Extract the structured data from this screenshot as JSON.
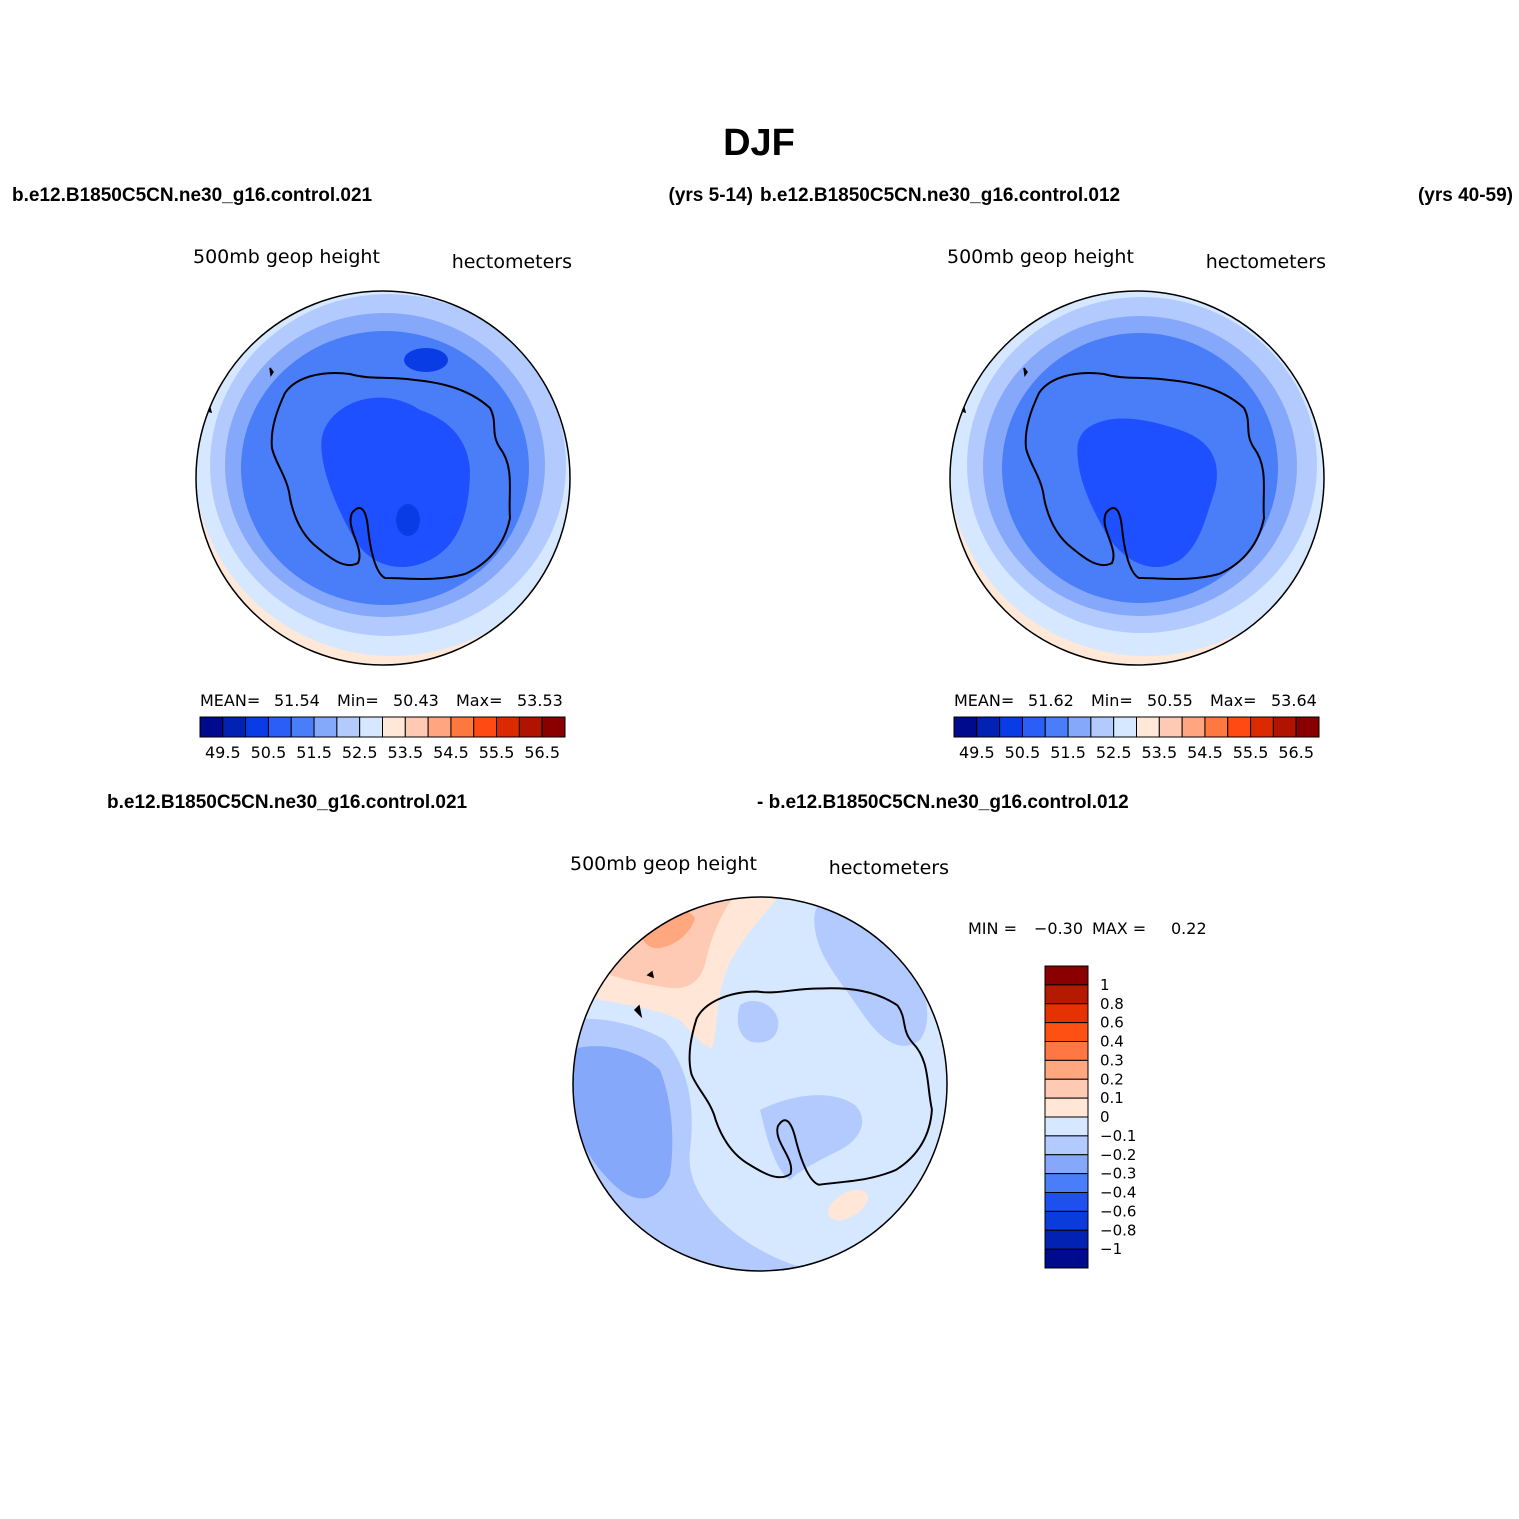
{
  "figure": {
    "title": "DJF"
  },
  "panels": [
    {
      "case_left": "b.e12.B1850C5CN.ne30_g16.control.021",
      "case_right": "(yrs 5-14)",
      "field": "500mb geop height",
      "units": "hectometers",
      "stats": {
        "mean_label": "MEAN=",
        "mean": "51.54",
        "min_label": "Min=",
        "min": "50.43",
        "max_label": "Max=",
        "max": "53.53"
      },
      "colorbar_labels": [
        "49.5",
        "50.5",
        "51.5",
        "52.5",
        "53.5",
        "54.5",
        "55.5",
        "56.5"
      ]
    },
    {
      "case_left": "b.e12.B1850C5CN.ne30_g16.control.012",
      "case_right": "(yrs 40-59)",
      "field": "500mb geop height",
      "units": "hectometers",
      "stats": {
        "mean_label": "MEAN=",
        "mean": "51.62",
        "min_label": "Min=",
        "min": "50.55",
        "max_label": "Max=",
        "max": "53.64"
      },
      "colorbar_labels": [
        "49.5",
        "50.5",
        "51.5",
        "52.5",
        "53.5",
        "54.5",
        "55.5",
        "56.5"
      ]
    }
  ],
  "diff_panel": {
    "case_left": "b.e12.B1850C5CN.ne30_g16.control.021",
    "case_right": "- b.e12.B1850C5CN.ne30_g16.control.012",
    "field": "500mb geop height",
    "units": "hectometers",
    "min_label": "MIN =",
    "min": "−0.30",
    "max_label": "MAX =",
    "max": "0.22",
    "colorbar_labels": [
      "1",
      "0.8",
      "0.6",
      "0.4",
      "0.3",
      "0.2",
      "0.1",
      "0",
      "−0.1",
      "−0.2",
      "−0.3",
      "−0.4",
      "−0.6",
      "−0.8",
      "−1"
    ]
  },
  "palettes": {
    "abs": [
      "#000a8c",
      "#0222b4",
      "#0a3ce6",
      "#2a5ef6",
      "#4a7ef8",
      "#84a8fa",
      "#b3caff",
      "#d6e8ff",
      "#ffe8d8",
      "#ffcab4",
      "#ffa680",
      "#ff7840",
      "#ff4a14",
      "#dc2a00",
      "#b01400",
      "#8a0000"
    ],
    "diff": [
      "#8a0000",
      "#b41a00",
      "#e63200",
      "#ff5014",
      "#ff7844",
      "#ffa880",
      "#ffcab4",
      "#ffe6d6",
      "#d6e8ff",
      "#b3caff",
      "#86a8fa",
      "#4a7ef8",
      "#1e50f0",
      "#0a3cdc",
      "#0222b4",
      "#000a8c"
    ],
    "map_abs_1": {
      "outer_warm": "#ffe8d8",
      "ring1": "#d6e8ff",
      "ring2": "#b3caff",
      "ring3": "#86a8fa",
      "ring4": "#4a7ef8",
      "core": "#1e50ff",
      "deep": "#0a3ce6"
    },
    "map_abs_2": {
      "outer_warm": "#ffe8d8",
      "ring1": "#d6e8ff",
      "ring2": "#b3caff",
      "ring3": "#86a8fa",
      "ring4": "#4a7ef8",
      "core": "#1e50ff"
    },
    "map_diff": {
      "base": "#d6e8ff",
      "light_neg": "#b3caff",
      "mid_neg": "#86a8fa",
      "pos1": "#ffe6d6",
      "pos2": "#ffcab4",
      "pos3": "#ffa880"
    }
  }
}
